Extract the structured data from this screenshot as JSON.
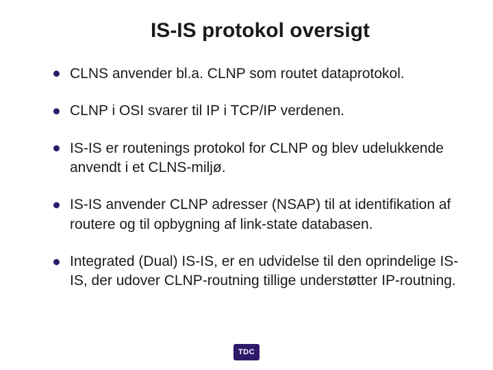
{
  "title": {
    "text": "IS-IS protokol oversigt",
    "color": "#1a1a1a",
    "fontsize": 30
  },
  "bullets": {
    "items": [
      "CLNS anvender bl.a. CLNP som routet dataprotokol.",
      "CLNP i OSI svarer til IP i TCP/IP verdenen.",
      "IS-IS er routenings protokol for CLNP og blev udelukkende anvendt i et CLNS-miljø.",
      "IS-IS  anvender CLNP adresser (NSAP) til at identifikation af routere og til opbygning af link-state databasen.",
      "Integrated (Dual) IS-IS, er en udvidelse til den oprindelige IS-IS, der udover CLNP-routning tillige understøtter IP-routning."
    ],
    "text_color": "#1a1a1a",
    "bullet_color": "#2e1a6b",
    "fontsize": 21,
    "line_height": 1.35
  },
  "logo": {
    "text": "TDC",
    "bg_color": "#2e1a6b",
    "text_color": "#ffffff"
  },
  "background_color": "#ffffff"
}
